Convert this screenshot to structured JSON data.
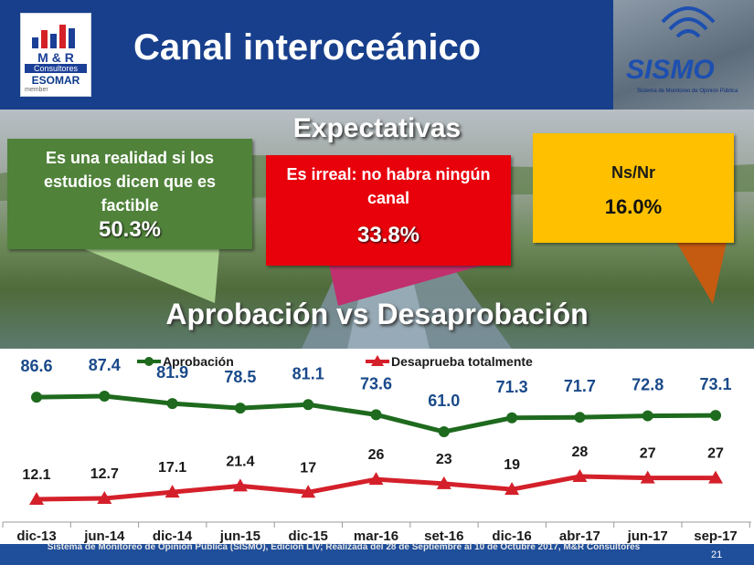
{
  "header": {
    "title": "Canal interoceánico",
    "logo_left": {
      "line1": "M & R",
      "line2": "Consultores",
      "line3": "ESOMAR",
      "line4": "member"
    },
    "logo_right": {
      "name": "SISMO",
      "subtitle": "Sistema de Monitoreo de Opinión Pública"
    }
  },
  "expectativas": {
    "heading": "Expectativas",
    "boxes": [
      {
        "text": "Es una realidad si los estudios dicen que es factible",
        "value": "50.3%",
        "color": "#50823a"
      },
      {
        "text": "Es irreal: no habra ningún canal",
        "value": "33.8%",
        "color": "#e8000b"
      },
      {
        "text": "Ns/Nr",
        "value": "16.0%",
        "color": "#ffc000"
      }
    ]
  },
  "section_title": "Aprobación vs Desaprobación",
  "chart_data": {
    "type": "line",
    "categories": [
      "dic-13",
      "jun-14",
      "dic-14",
      "jun-15",
      "dic-15",
      "mar-16",
      "set-16",
      "dic-16",
      "abr-17",
      "jun-17",
      "sep-17"
    ],
    "series": [
      {
        "name": "Aprobación",
        "color": "#1e6a1e",
        "values": [
          86.6,
          87.4,
          81.9,
          78.5,
          81.1,
          73.6,
          61.0,
          71.3,
          71.7,
          72.8,
          73.1
        ],
        "labels": [
          "86.6",
          "87.4",
          "81.9",
          "78.5",
          "81.1",
          "73.6",
          "61.0",
          "71.3",
          "71.7",
          "72.8",
          "73.1"
        ]
      },
      {
        "name": "Desaprueba totalmente",
        "color": "#d4202a",
        "values": [
          12.1,
          12.7,
          17.1,
          21.4,
          17,
          26,
          23,
          19,
          28,
          27,
          27
        ],
        "labels": [
          "12.1",
          "12.7",
          "17.1",
          "21.4",
          "17",
          "26",
          "23",
          "19",
          "28",
          "27",
          "27"
        ]
      }
    ],
    "legend": "top"
  },
  "footer": {
    "text": "Sistema de Monitoreo de Opinión Pública (SISMO), Edición LIV; Realizada del 28 de Septiembre al 10 de Octubre 2017, M&R Consultores",
    "page": "21"
  }
}
